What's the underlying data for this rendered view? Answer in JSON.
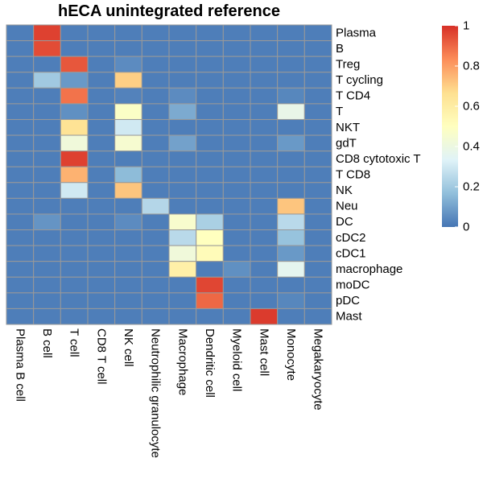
{
  "chart_data": {
    "type": "heatmap",
    "title": "hECA unintegrated reference",
    "rows": [
      "Plasma",
      "B",
      "Treg",
      "T cycling",
      "T CD4",
      "T",
      "NKT",
      "gdT",
      "CD8 cytotoxic T",
      "T CD8",
      "NK",
      "Neu",
      "DC",
      "cDC2",
      "cDC1",
      "macrophage",
      "moDC",
      "pDC",
      "Mast"
    ],
    "columns": [
      "Plasma B cell",
      "B cell",
      "T cell",
      "CD8 T cell",
      "NK cell",
      "Neutrophilic granulocyte",
      "Macrophage",
      "Dendritic cell",
      "Myeloid cell",
      "Mast cell",
      "Monocyte",
      "Megakaryocyte"
    ],
    "values": [
      [
        0.02,
        0.97,
        0.02,
        0.02,
        0.02,
        0.02,
        0.02,
        0.02,
        0.02,
        0.02,
        0.02,
        0.02
      ],
      [
        0.02,
        0.95,
        0.02,
        0.02,
        0.02,
        0.02,
        0.02,
        0.02,
        0.02,
        0.02,
        0.02,
        0.02
      ],
      [
        0.02,
        0.02,
        0.93,
        0.02,
        0.05,
        0.02,
        0.02,
        0.02,
        0.02,
        0.02,
        0.02,
        0.02
      ],
      [
        0.02,
        0.2,
        0.08,
        0.02,
        0.7,
        0.02,
        0.02,
        0.02,
        0.02,
        0.02,
        0.02,
        0.02
      ],
      [
        0.02,
        0.02,
        0.88,
        0.02,
        0.03,
        0.02,
        0.05,
        0.02,
        0.02,
        0.02,
        0.04,
        0.02
      ],
      [
        0.02,
        0.02,
        0.06,
        0.02,
        0.48,
        0.02,
        0.12,
        0.02,
        0.02,
        0.02,
        0.38,
        0.02
      ],
      [
        0.02,
        0.02,
        0.65,
        0.02,
        0.3,
        0.02,
        0.02,
        0.02,
        0.02,
        0.02,
        0.02,
        0.02
      ],
      [
        0.02,
        0.02,
        0.42,
        0.02,
        0.45,
        0.02,
        0.1,
        0.02,
        0.02,
        0.02,
        0.08,
        0.02
      ],
      [
        0.02,
        0.02,
        0.97,
        0.02,
        0.02,
        0.02,
        0.02,
        0.02,
        0.02,
        0.02,
        0.02,
        0.02
      ],
      [
        0.02,
        0.02,
        0.76,
        0.02,
        0.16,
        0.02,
        0.02,
        0.02,
        0.02,
        0.02,
        0.02,
        0.02
      ],
      [
        0.02,
        0.02,
        0.3,
        0.02,
        0.72,
        0.02,
        0.02,
        0.02,
        0.02,
        0.02,
        0.02,
        0.02
      ],
      [
        0.02,
        0.02,
        0.02,
        0.02,
        0.02,
        0.24,
        0.02,
        0.02,
        0.02,
        0.02,
        0.72,
        0.02
      ],
      [
        0.02,
        0.07,
        0.02,
        0.02,
        0.05,
        0.02,
        0.46,
        0.22,
        0.02,
        0.02,
        0.25,
        0.02
      ],
      [
        0.02,
        0.02,
        0.02,
        0.02,
        0.02,
        0.02,
        0.25,
        0.5,
        0.02,
        0.02,
        0.18,
        0.02
      ],
      [
        0.02,
        0.02,
        0.02,
        0.02,
        0.02,
        0.02,
        0.42,
        0.52,
        0.02,
        0.02,
        0.08,
        0.02
      ],
      [
        0.02,
        0.02,
        0.02,
        0.02,
        0.02,
        0.02,
        0.58,
        0.02,
        0.06,
        0.02,
        0.36,
        0.02
      ],
      [
        0.02,
        0.02,
        0.02,
        0.02,
        0.02,
        0.02,
        0.02,
        0.96,
        0.02,
        0.02,
        0.02,
        0.02
      ],
      [
        0.02,
        0.02,
        0.02,
        0.02,
        0.02,
        0.02,
        0.02,
        0.9,
        0.02,
        0.02,
        0.04,
        0.02
      ],
      [
        0.02,
        0.02,
        0.02,
        0.02,
        0.02,
        0.02,
        0.02,
        0.02,
        0.02,
        0.98,
        0.02,
        0.02
      ]
    ],
    "zlim": [
      0,
      1
    ],
    "legend": {
      "ticks": [
        "1",
        "0.8",
        "0.6",
        "0.4",
        "0.2",
        "0"
      ],
      "placement": "right"
    },
    "colors": {
      "scale": [
        "#4575B4",
        "#91BFDB",
        "#E0F3F8",
        "#FFFFBF",
        "#FEE090",
        "#FC8D59",
        "#D73027"
      ],
      "grid": "#999999"
    }
  }
}
